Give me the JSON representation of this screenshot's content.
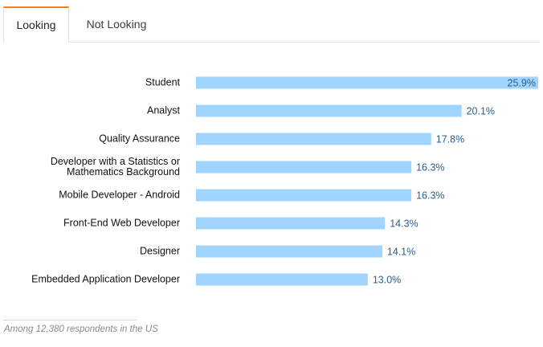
{
  "tabs": [
    {
      "label": "Looking",
      "active": true
    },
    {
      "label": "Not Looking",
      "active": false
    }
  ],
  "colors": {
    "bar": "#9fd5ff",
    "value_text": "#2a5d8f",
    "active_tab_accent": "#f48024"
  },
  "chart_data": {
    "type": "bar",
    "orientation": "horizontal",
    "categories": [
      [
        "Student"
      ],
      [
        "Analyst"
      ],
      [
        "Quality Assurance"
      ],
      [
        "Developer with a Statistics or",
        "Mathematics Background"
      ],
      [
        "Mobile Developer - Android"
      ],
      [
        "Front-End Web Developer"
      ],
      [
        "Designer"
      ],
      [
        "Embedded Application Developer"
      ]
    ],
    "values": [
      25.9,
      20.1,
      17.8,
      16.3,
      16.3,
      14.3,
      14.1,
      13.0
    ],
    "value_labels": [
      "25.9%",
      "20.1%",
      "17.8%",
      "16.3%",
      "16.3%",
      "14.3%",
      "14.1%",
      "13.0%"
    ],
    "value_unit": "%",
    "xlim": [
      0,
      25.9
    ],
    "grid": false,
    "legend": "none"
  },
  "footnote": "Among 12,380 respondents in the US"
}
